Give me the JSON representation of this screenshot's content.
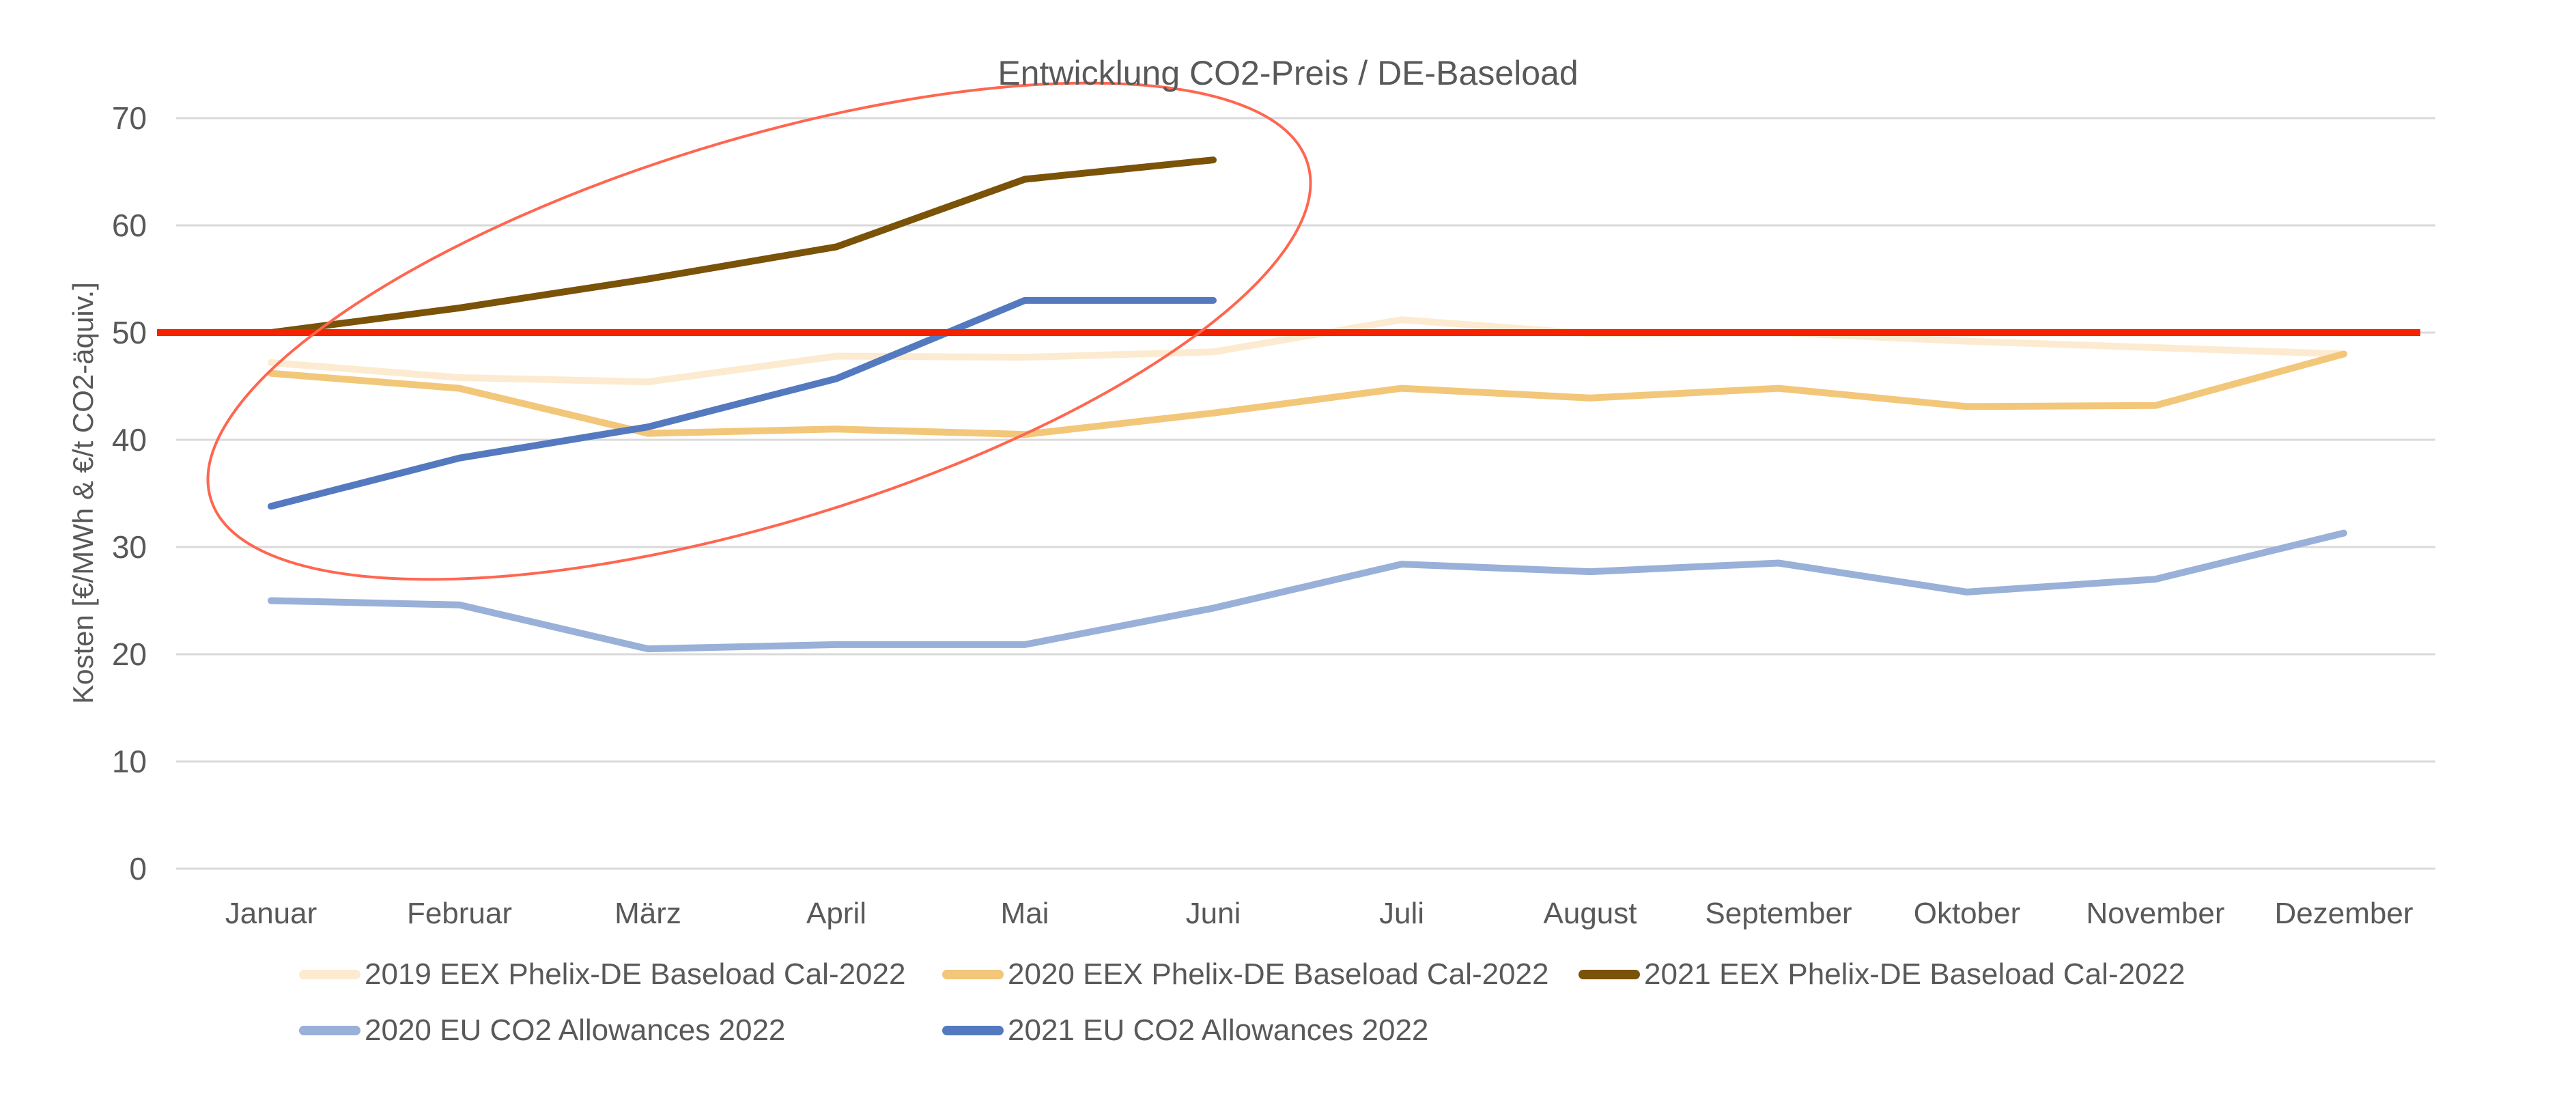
{
  "chart_data": {
    "type": "line",
    "title": "Entwicklung CO2-Preis / DE-Baseload",
    "xlabel": "",
    "ylabel": "Kosten [€/MWh  & €/t CO2-äquiv.]",
    "ylim": [
      0,
      70
    ],
    "yticks": [
      0,
      10,
      20,
      30,
      40,
      50,
      60,
      70
    ],
    "grid": true,
    "legend_position": "bottom",
    "categories": [
      "Januar",
      "Februar",
      "März",
      "April",
      "Mai",
      "Juni",
      "Juli",
      "August",
      "September",
      "Oktober",
      "November",
      "Dezember"
    ],
    "series": [
      {
        "name": "2019 EEX Phelix-DE Baseload Cal-2022",
        "color": "#FCEBD0",
        "values": [
          47.2,
          45.8,
          45.4,
          47.8,
          47.7,
          48.2,
          51.2,
          49.9,
          50.0,
          49.2,
          48.6,
          48.0
        ]
      },
      {
        "name": "2020 EEX Phelix-DE Baseload Cal-2022",
        "color": "#F2C77A",
        "values": [
          46.2,
          44.8,
          40.6,
          41.0,
          40.5,
          42.5,
          44.8,
          43.9,
          44.8,
          43.1,
          43.2,
          48.0
        ]
      },
      {
        "name": "2021 EEX Phelix-DE Baseload Cal-2022",
        "color": "#7A5208",
        "values": [
          50.0,
          52.3,
          55.0,
          58.0,
          64.3,
          66.1,
          null,
          null,
          null,
          null,
          null,
          null
        ]
      },
      {
        "name": "2020 EU CO2 Allowances 2022",
        "color": "#99B0D8",
        "values": [
          25.0,
          24.6,
          20.5,
          20.9,
          20.9,
          24.3,
          28.4,
          27.7,
          28.5,
          25.8,
          27.0,
          31.3
        ]
      },
      {
        "name": "2021 EU CO2 Allowances 2022",
        "color": "#5479BF",
        "values": [
          33.8,
          38.3,
          41.2,
          45.7,
          53.0,
          53.0,
          null,
          null,
          null,
          null,
          null,
          null
        ]
      }
    ],
    "annotations": [
      {
        "type": "hline",
        "y": 50,
        "color": "#F52200"
      },
      {
        "type": "ellipse",
        "color": "#FF6650",
        "encloses": [
          "Januar",
          "Februar",
          "März",
          "April",
          "Mai",
          "Juni"
        ]
      }
    ]
  }
}
